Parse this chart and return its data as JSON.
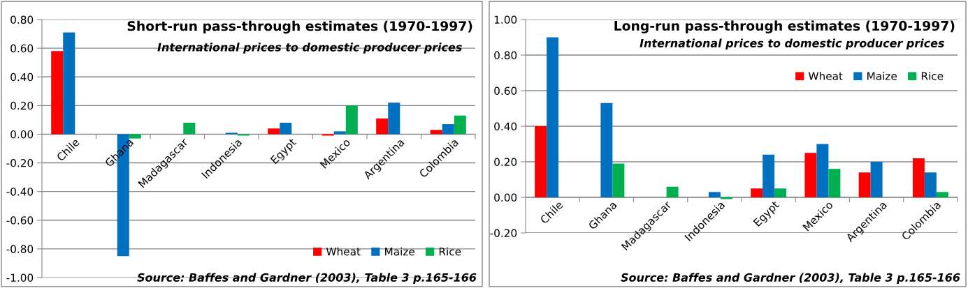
{
  "chart_data": [
    {
      "type": "bar",
      "title": "Short-run pass-through estimates (1970-1997)",
      "subtitle": "International prices to domestic producer prices",
      "categories": [
        "Chile",
        "Ghana",
        "Madagascar",
        "Indonesia",
        "Egypt",
        "Mexico",
        "Argentina",
        "Colombia"
      ],
      "series": [
        {
          "name": "Wheat",
          "color": "#ff0000",
          "values": [
            0.58,
            null,
            null,
            null,
            0.04,
            -0.01,
            0.11,
            0.03
          ]
        },
        {
          "name": "Maize",
          "color": "#0070c0",
          "values": [
            0.71,
            -0.85,
            null,
            0.01,
            0.08,
            0.02,
            0.22,
            0.07
          ]
        },
        {
          "name": "Rice",
          "color": "#00b050",
          "values": [
            null,
            -0.03,
            0.08,
            -0.01,
            null,
            0.2,
            null,
            0.13
          ]
        }
      ],
      "ylim": [
        -1.0,
        0.8
      ],
      "yticks": [
        {
          "value": -1.0,
          "label": "-1.00"
        },
        {
          "value": -0.8,
          "label": "-0.80"
        },
        {
          "value": -0.6,
          "label": "-0.60"
        },
        {
          "value": -0.4,
          "label": "-0.40"
        },
        {
          "value": -0.2,
          "label": "-0.20"
        },
        {
          "value": 0.0,
          "label": "0.00"
        },
        {
          "value": 0.2,
          "label": "0.20"
        },
        {
          "value": 0.4,
          "label": "0.40"
        },
        {
          "value": 0.6,
          "label": "0.60"
        },
        {
          "value": 0.8,
          "label": "0.80"
        }
      ],
      "grid": "y",
      "legend": "bottom right",
      "annotations": [
        "Source: Baffes and Gardner (2003), Table 3 p.165-166"
      ]
    },
    {
      "type": "bar",
      "title": "Long-run pass-through estimates (1970-1997)",
      "subtitle": "International prices to domestic producer prices",
      "categories": [
        "Chile",
        "Ghana",
        "Madagascar",
        "Indonesia",
        "Egypt",
        "Mexico",
        "Argentina",
        "Colombia"
      ],
      "series": [
        {
          "name": "Wheat",
          "color": "#ff0000",
          "values": [
            0.4,
            null,
            null,
            null,
            0.05,
            0.25,
            0.14,
            0.22
          ]
        },
        {
          "name": "Maize",
          "color": "#0070c0",
          "values": [
            0.9,
            0.53,
            null,
            0.03,
            0.24,
            0.3,
            0.2,
            0.14
          ]
        },
        {
          "name": "Rice",
          "color": "#00b050",
          "values": [
            null,
            0.19,
            0.06,
            -0.01,
            0.05,
            0.16,
            null,
            0.03
          ]
        }
      ],
      "ylim": [
        -0.2,
        1.0
      ],
      "yticks": [
        {
          "value": -0.2,
          "label": "-0.20"
        },
        {
          "value": 0.0,
          "label": "0.00"
        },
        {
          "value": 0.2,
          "label": "0.20"
        },
        {
          "value": 0.4,
          "label": "0.40"
        },
        {
          "value": 0.6,
          "label": "0.60"
        },
        {
          "value": 0.8,
          "label": "0.80"
        },
        {
          "value": 1.0,
          "label": "1.00"
        }
      ],
      "grid": "y",
      "legend": "top right",
      "annotations": [
        "Source: Baffes and Gardner (2003), Table 3 p.165-166"
      ]
    }
  ]
}
